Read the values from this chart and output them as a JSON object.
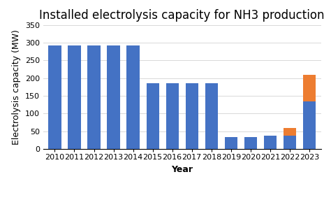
{
  "title": "Installed electrolysis capacity for NH3 production",
  "xlabel": "Year",
  "ylabel": "Electrolysis capacity (MW)",
  "years": [
    2010,
    2011,
    2012,
    2013,
    2014,
    2015,
    2016,
    2017,
    2018,
    2019,
    2020,
    2021,
    2022,
    2023
  ],
  "alkaline": [
    291,
    291,
    291,
    291,
    291,
    185,
    185,
    185,
    185,
    33,
    33,
    38,
    38,
    135
  ],
  "pem": [
    0,
    0,
    0,
    0,
    0,
    0,
    0,
    0,
    0,
    0,
    0,
    0,
    22,
    75
  ],
  "soec": [
    0,
    0,
    0,
    0,
    0,
    0,
    0,
    0,
    0,
    0,
    0,
    0,
    0,
    0
  ],
  "unknown": [
    0,
    0,
    0,
    0,
    0,
    0,
    0,
    0,
    0,
    0,
    0,
    0,
    0,
    0
  ],
  "alkaline_color": "#4472c4",
  "pem_color": "#ed7d31",
  "soec_color": "#a5a5a5",
  "unknown_color": "#ffc000",
  "ylim": [
    0,
    350
  ],
  "yticks": [
    0,
    50,
    100,
    150,
    200,
    250,
    300,
    350
  ],
  "background_color": "#ffffff",
  "title_fontsize": 12,
  "axis_label_fontsize": 9,
  "tick_fontsize": 8,
  "legend_fontsize": 8,
  "bar_width": 0.65
}
